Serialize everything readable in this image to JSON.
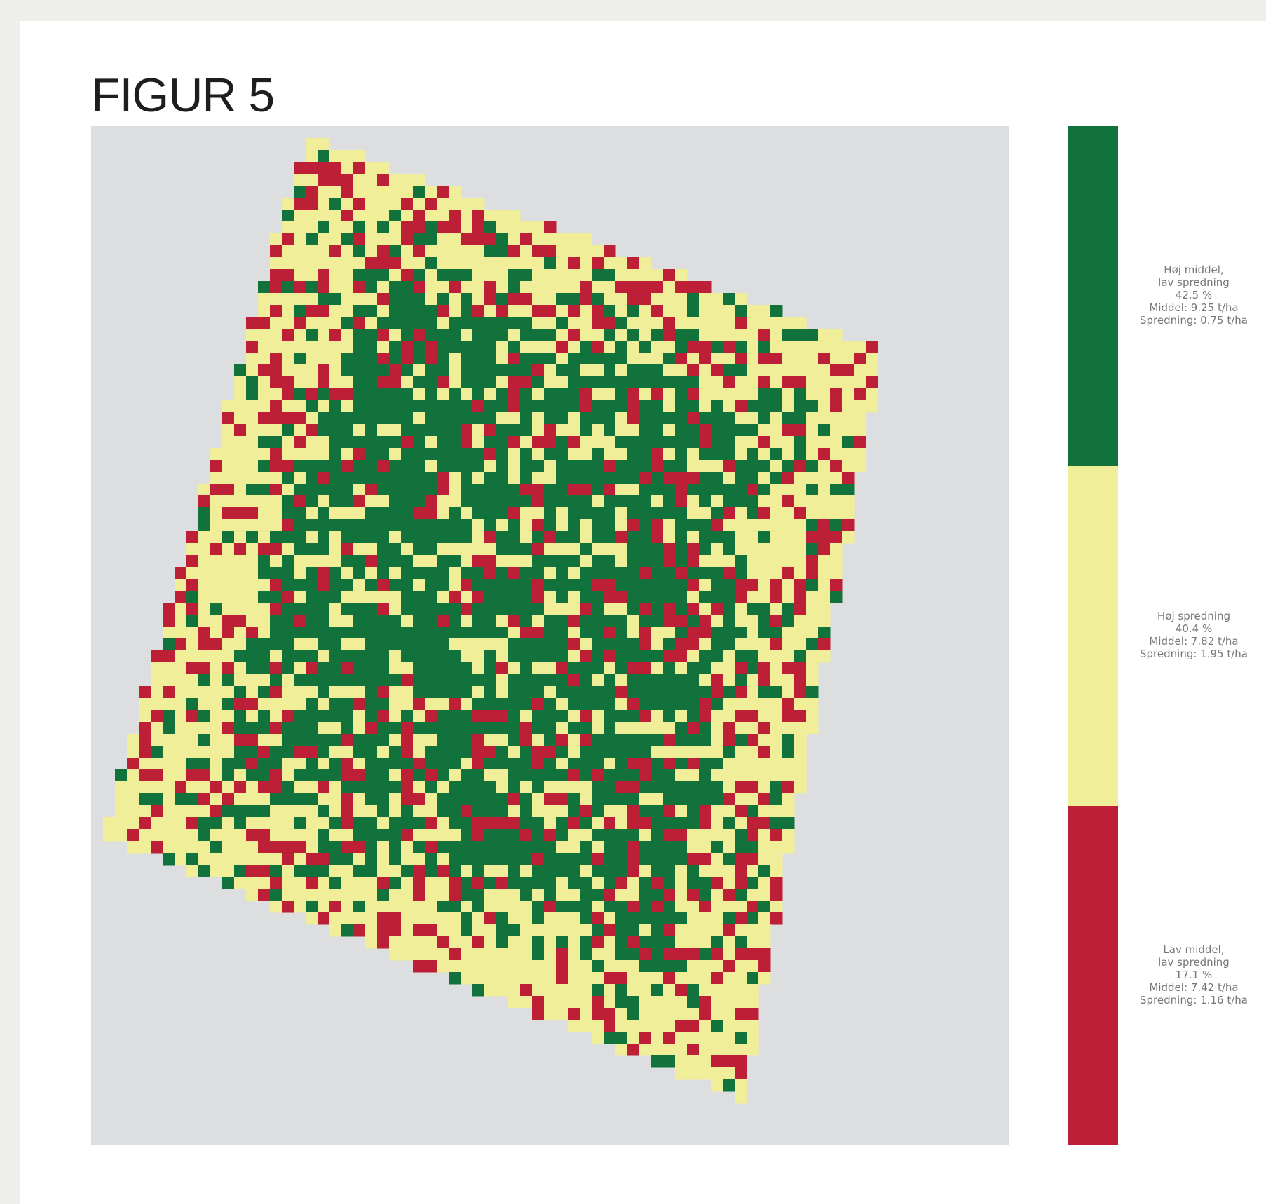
{
  "title": "FIGUR 5",
  "colors": {
    "high_mean_low_spread": "#12723b",
    "high_spread": "#f0ee98",
    "low_mean_low_spread": "#bd1f36",
    "background": "#dddedf"
  },
  "chart_data": {
    "type": "heatmap",
    "title": "FIGUR 5",
    "legend": [
      {
        "class": "Høj middel, lav spredning",
        "lines": [
          "Høj middel,",
          "lav spredning",
          "42.5 %",
          "Middel: 9.25 t/ha",
          "Spredning: 0.75 t/ha"
        ],
        "share_percent": 42.5,
        "mean_t_ha": 9.25,
        "spread_t_ha": 0.75,
        "color": "#12723b"
      },
      {
        "class": "Høj spredning",
        "lines": [
          "Høj spredning",
          "40.4 %",
          "Middel: 7.82 t/ha",
          "Spredning: 1.95 t/ha"
        ],
        "share_percent": 40.4,
        "mean_t_ha": 7.82,
        "spread_t_ha": 1.95,
        "color": "#f0ee98"
      },
      {
        "class": "Lav middel, lav spredning",
        "lines": [
          "Lav middel,",
          "lav spredning",
          "17.1 %",
          "Middel: 7.42 t/ha",
          "Spredning: 1.16 t/ha"
        ],
        "share_percent": 17.1,
        "mean_t_ha": 7.42,
        "spread_t_ha": 1.16,
        "color": "#bd1f36"
      }
    ]
  }
}
